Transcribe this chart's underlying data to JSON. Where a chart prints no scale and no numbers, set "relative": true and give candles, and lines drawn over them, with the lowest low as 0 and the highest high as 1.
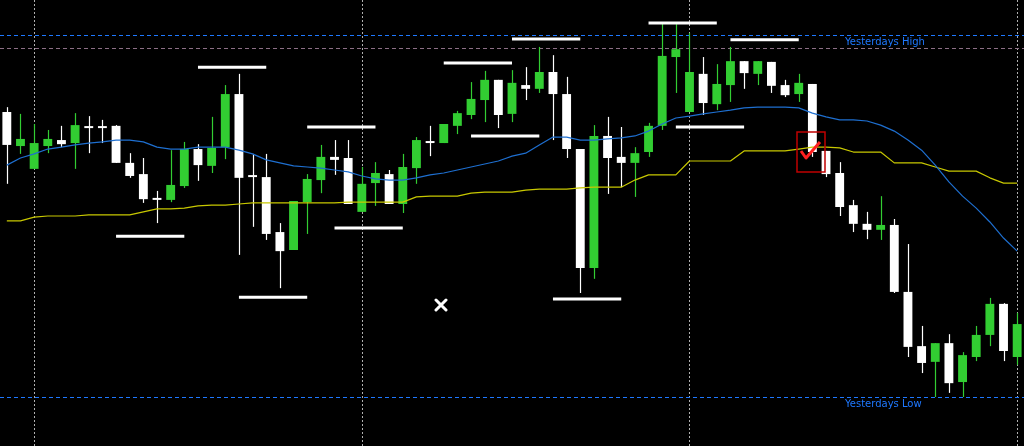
{
  "chart_data": {
    "type": "candlestick",
    "relative": true,
    "tick_labels": false,
    "grid": "x",
    "categories": [
      null,
      null,
      null,
      null,
      null,
      null,
      null,
      null,
      null,
      null,
      null,
      null,
      null,
      null,
      null,
      null,
      null,
      null,
      null,
      null,
      null,
      null,
      null,
      null,
      null,
      null,
      null,
      null,
      null,
      null,
      null,
      null,
      null,
      null,
      null,
      null,
      null,
      null,
      null,
      null,
      null,
      null,
      null,
      null,
      null,
      null,
      null,
      null,
      null,
      null,
      null,
      null,
      null,
      null,
      null,
      null,
      null,
      null,
      null,
      null,
      null,
      null,
      null,
      null,
      null,
      null,
      null,
      null,
      null,
      null,
      null,
      null,
      null,
      null,
      null
    ],
    "ohlc": [
      [
        0.762,
        0.775,
        0.57,
        0.674
      ],
      [
        0.671,
        0.757,
        0.65,
        0.69
      ],
      [
        0.61,
        0.73,
        0.61,
        0.679
      ],
      [
        0.671,
        0.714,
        0.652,
        0.69
      ],
      [
        0.687,
        0.725,
        0.668,
        0.676
      ],
      [
        0.679,
        0.759,
        0.61,
        0.727
      ],
      [
        0.722,
        0.751,
        0.652,
        0.719
      ],
      [
        0.722,
        0.741,
        0.679,
        0.719
      ],
      [
        0.725,
        0.727,
        0.626,
        0.626
      ],
      [
        0.626,
        0.652,
        0.586,
        0.591
      ],
      [
        0.596,
        0.639,
        0.519,
        0.529
      ],
      [
        0.532,
        0.551,
        0.465,
        0.527
      ],
      [
        0.527,
        0.66,
        0.521,
        0.567
      ],
      [
        0.564,
        0.682,
        0.559,
        0.663
      ],
      [
        0.663,
        0.676,
        0.578,
        0.62
      ],
      [
        0.618,
        0.749,
        0.599,
        0.666
      ],
      [
        0.668,
        0.834,
        0.636,
        0.81
      ],
      [
        0.81,
        0.864,
        0.38,
        0.586
      ],
      [
        0.591,
        0.65,
        0.455,
        0.588
      ],
      [
        0.588,
        0.65,
        0.42,
        0.436
      ],
      [
        0.441,
        0.465,
        0.291,
        0.39
      ],
      [
        0.393,
        0.524,
        0.393,
        0.524
      ],
      [
        0.521,
        0.596,
        0.436,
        0.583
      ],
      [
        0.58,
        0.674,
        0.545,
        0.642
      ],
      [
        0.642,
        0.687,
        0.594,
        0.634
      ],
      [
        0.639,
        0.687,
        0.516,
        0.516
      ],
      [
        0.495,
        0.615,
        0.495,
        0.57
      ],
      [
        0.572,
        0.628,
        0.511,
        0.599
      ],
      [
        0.596,
        0.607,
        0.516,
        0.516
      ],
      [
        0.516,
        0.65,
        0.492,
        0.615
      ],
      [
        0.612,
        0.695,
        0.57,
        0.687
      ],
      [
        0.684,
        0.725,
        0.644,
        0.679
      ],
      [
        0.679,
        0.73,
        0.679,
        0.73
      ],
      [
        0.725,
        0.765,
        0.703,
        0.759
      ],
      [
        0.754,
        0.842,
        0.743,
        0.797
      ],
      [
        0.794,
        0.872,
        0.735,
        0.848
      ],
      [
        0.848,
        0.848,
        0.719,
        0.754
      ],
      [
        0.757,
        0.874,
        0.735,
        0.84
      ],
      [
        0.834,
        0.882,
        0.794,
        0.824
      ],
      [
        0.824,
        0.936,
        0.813,
        0.869
      ],
      [
        0.869,
        0.914,
        0.687,
        0.81
      ],
      [
        0.81,
        0.856,
        0.639,
        0.663
      ],
      [
        0.663,
        0.663,
        0.278,
        0.345
      ],
      [
        0.345,
        0.727,
        0.316,
        0.698
      ],
      [
        0.698,
        0.749,
        0.543,
        0.639
      ],
      [
        0.642,
        0.722,
        0.561,
        0.626
      ],
      [
        0.626,
        0.668,
        0.535,
        0.652
      ],
      [
        0.655,
        0.733,
        0.642,
        0.725
      ],
      [
        0.725,
        1.0,
        0.714,
        0.912
      ],
      [
        0.909,
        0.997,
        0.813,
        0.93
      ],
      [
        0.762,
        0.973,
        0.762,
        0.869
      ],
      [
        0.864,
        0.909,
        0.754,
        0.786
      ],
      [
        0.783,
        0.89,
        0.767,
        0.837
      ],
      [
        0.834,
        0.936,
        0.789,
        0.898
      ],
      [
        0.898,
        0.898,
        0.824,
        0.866
      ],
      [
        0.864,
        0.898,
        0.834,
        0.898
      ],
      [
        0.896,
        0.896,
        0.813,
        0.832
      ],
      [
        0.834,
        0.848,
        0.802,
        0.807
      ],
      [
        0.81,
        0.864,
        0.789,
        0.84
      ],
      [
        0.837,
        0.837,
        0.642,
        0.655
      ],
      [
        0.658,
        0.658,
        0.588,
        0.596
      ],
      [
        0.599,
        0.628,
        0.484,
        0.508
      ],
      [
        0.513,
        0.527,
        0.441,
        0.463
      ],
      [
        0.463,
        0.495,
        0.422,
        0.447
      ],
      [
        0.447,
        0.537,
        0.42,
        0.46
      ],
      [
        0.46,
        0.476,
        0.278,
        0.281
      ],
      [
        0.281,
        0.409,
        0.107,
        0.134
      ],
      [
        0.136,
        0.19,
        0.064,
        0.091
      ],
      [
        0.094,
        0.144,
        0,
        0.144
      ],
      [
        0.144,
        0.168,
        0.011,
        0.037
      ],
      [
        0.04,
        0.12,
        0,
        0.112
      ],
      [
        0.107,
        0.19,
        0.096,
        0.166
      ],
      [
        0.166,
        0.265,
        0.136,
        0.249
      ],
      [
        0.249,
        0.251,
        0.096,
        0.123
      ],
      [
        0.107,
        0.225,
        0.086,
        0.195
      ]
    ],
    "colors": [
      "#ffffff",
      "#32cd32",
      "#32cd32",
      "#32cd32",
      "#ffffff",
      "#32cd32",
      "#ffffff",
      "#ffffff",
      "#ffffff",
      "#ffffff",
      "#ffffff",
      "#ffffff",
      "#32cd32",
      "#32cd32",
      "#ffffff",
      "#32cd32",
      "#32cd32",
      "#ffffff",
      "#ffffff",
      "#ffffff",
      "#ffffff",
      "#32cd32",
      "#32cd32",
      "#32cd32",
      "#ffffff",
      "#ffffff",
      "#32cd32",
      "#32cd32",
      "#ffffff",
      "#32cd32",
      "#32cd32",
      "#ffffff",
      "#32cd32",
      "#32cd32",
      "#32cd32",
      "#32cd32",
      "#ffffff",
      "#32cd32",
      "#ffffff",
      "#32cd32",
      "#ffffff",
      "#ffffff",
      "#ffffff",
      "#32cd32",
      "#ffffff",
      "#ffffff",
      "#32cd32",
      "#32cd32",
      "#32cd32",
      "#32cd32",
      "#32cd32",
      "#ffffff",
      "#32cd32",
      "#32cd32",
      "#ffffff",
      "#32cd32",
      "#ffffff",
      "#ffffff",
      "#32cd32",
      "#ffffff",
      "#ffffff",
      "#ffffff",
      "#ffffff",
      "#ffffff",
      "#32cd32",
      "#ffffff",
      "#ffffff",
      "#ffffff",
      "#32cd32",
      "#ffffff",
      "#32cd32",
      "#32cd32",
      "#32cd32",
      "#ffffff",
      "#32cd32"
    ],
    "series": [
      {
        "type": "line",
        "color": "#1e6fd0",
        "values": [
          0.62,
          0.639,
          0.65,
          0.663,
          0.668,
          0.674,
          0.679,
          0.682,
          0.687,
          0.687,
          0.682,
          0.668,
          0.663,
          0.663,
          0.668,
          0.668,
          0.668,
          0.66,
          0.65,
          0.634,
          0.626,
          0.618,
          0.615,
          0.612,
          0.607,
          0.602,
          0.591,
          0.583,
          0.58,
          0.58,
          0.586,
          0.594,
          0.599,
          0.607,
          0.615,
          0.623,
          0.631,
          0.644,
          0.652,
          0.674,
          0.695,
          0.695,
          0.687,
          0.687,
          0.69,
          0.693,
          0.698,
          0.711,
          0.73,
          0.746,
          0.751,
          0.757,
          0.762,
          0.767,
          0.773,
          0.775,
          0.775,
          0.775,
          0.773,
          0.759,
          0.749,
          0.741,
          0.741,
          0.738,
          0.727,
          0.711,
          0.687,
          0.66,
          0.62,
          0.575,
          0.537,
          0.505,
          0.468,
          0.425,
          0.39
        ]
      },
      {
        "type": "line",
        "color": "#c8c800",
        "values": [
          0.471,
          0.471,
          0.481,
          0.484,
          0.484,
          0.484,
          0.487,
          0.487,
          0.487,
          0.487,
          0.495,
          0.503,
          0.503,
          0.505,
          0.511,
          0.513,
          0.513,
          0.516,
          0.519,
          0.519,
          0.519,
          0.519,
          0.519,
          0.519,
          0.519,
          0.521,
          0.521,
          0.521,
          0.521,
          0.521,
          0.535,
          0.537,
          0.537,
          0.537,
          0.545,
          0.548,
          0.548,
          0.548,
          0.553,
          0.556,
          0.556,
          0.556,
          0.559,
          0.561,
          0.561,
          0.561,
          0.58,
          0.594,
          0.594,
          0.594,
          0.631,
          0.631,
          0.631,
          0.631,
          0.658,
          0.658,
          0.658,
          0.658,
          0.663,
          0.668,
          0.668,
          0.666,
          0.655,
          0.655,
          0.655,
          0.626,
          0.626,
          0.626,
          0.615,
          0.604,
          0.604,
          0.604,
          0.586,
          0.572,
          0.572
        ]
      },
      {
        "type": "line",
        "color": "#ffffff",
        "values": [
          null,
          null,
          null,
          null,
          null,
          null,
          null,
          null,
          0.43,
          0.43,
          0.43,
          0.43,
          0.43,
          0.43,
          null,
          null,
          null,
          null,
          null,
          null,
          null,
          null,
          0.722,
          0.722,
          0.722,
          0.722,
          0.722,
          0.722,
          null,
          null,
          null,
          null,
          null,
          null,
          0.698,
          0.698,
          0.698,
          0.698,
          0.698,
          0.698,
          null,
          null,
          null,
          null,
          null,
          null,
          null,
          1,
          1,
          1,
          1,
          1,
          1,
          null,
          null,
          null,
          null,
          null,
          null,
          null,
          null,
          null,
          null,
          null,
          null,
          null,
          null,
          null,
          null,
          null,
          null,
          null,
          null,
          null,
          null
        ]
      },
      {
        "type": "line",
        "color": "#ffffff",
        "values": [
          null,
          null,
          null,
          null,
          null,
          null,
          null,
          null,
          null,
          null,
          null,
          null,
          null,
          null,
          0.882,
          0.882,
          0.882,
          0.882,
          0.882,
          0.882,
          null,
          null,
          null,
          null,
          0.452,
          0.452,
          0.452,
          0.452,
          0.452,
          0.452,
          null,
          null,
          null,
          null,
          null,
          null,
          null,
          0.957,
          0.957,
          0.957,
          0.957,
          0.957,
          0.957,
          null,
          null,
          null,
          null,
          null,
          null,
          0.722,
          0.722,
          0.722,
          0.722,
          0.722,
          0.722,
          null,
          null,
          null,
          null,
          null,
          null,
          null,
          null,
          null,
          null,
          null,
          null,
          null,
          null,
          null,
          null,
          null,
          null,
          null,
          null
        ]
      },
      {
        "type": "line",
        "color": "#ffffff",
        "values": [
          null,
          null,
          null,
          null,
          null,
          null,
          null,
          null,
          null,
          null,
          null,
          null,
          null,
          null,
          null,
          null,
          null,
          0.267,
          0.267,
          0.267,
          0.267,
          0.267,
          0.267,
          null,
          null,
          null,
          null,
          null,
          null,
          null,
          null,
          null,
          0.893,
          0.893,
          0.893,
          0.893,
          0.893,
          0.893,
          null,
          null,
          0.262,
          0.262,
          0.262,
          0.262,
          0.262,
          0.262,
          null,
          null,
          null,
          null,
          null,
          null,
          null,
          0.955,
          0.955,
          0.955,
          0.955,
          0.955,
          0.955,
          null,
          null,
          null,
          null,
          null,
          null,
          null,
          null,
          null,
          null,
          null,
          null,
          null,
          null,
          null,
          null
        ]
      }
    ],
    "ref_lines": [
      {
        "axis": "y",
        "value": 0.968,
        "label": "Yesterdays High",
        "color": "#1e78ff",
        "line_style": "dashed"
      },
      {
        "axis": "y",
        "value": 0.933,
        "color": "#8c6f85",
        "line_style": "dashed"
      },
      {
        "axis": "y",
        "value": 0,
        "label": "Yesterdays Low",
        "color": "#1e78ff",
        "line_style": "dashed"
      }
    ]
  }
}
